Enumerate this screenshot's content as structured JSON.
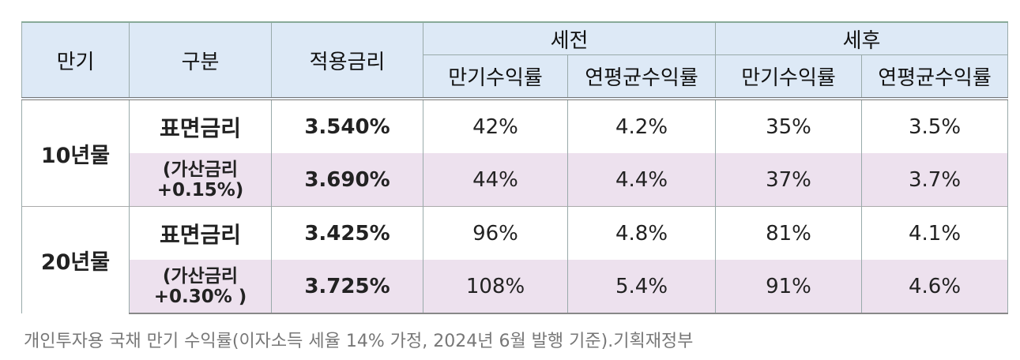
{
  "table": {
    "header": {
      "maturity": "만기",
      "type": "구분",
      "rate": "적용금리",
      "groups": [
        "세전",
        "세후"
      ],
      "subcolumns": [
        "만기수익률",
        "연평균수익률",
        "만기수익률",
        "연평균수익률"
      ]
    },
    "groups": [
      {
        "maturity": "10년물",
        "rows": [
          {
            "type": "표면금리",
            "rate": "3.540%",
            "cells": [
              "42%",
              "4.2%",
              "35%",
              "3.5%"
            ]
          },
          {
            "type": "(가산금리\n+0.15%)",
            "rate": "3.690%",
            "cells": [
              "44%",
              "4.4%",
              "37%",
              "3.7%"
            ]
          }
        ]
      },
      {
        "maturity": "20년물",
        "rows": [
          {
            "type": "표면금리",
            "rate": "3.425%",
            "cells": [
              "96%",
              "4.8%",
              "81%",
              "4.1%"
            ]
          },
          {
            "type": "(가산금리\n+0.30%  )",
            "rate": "3.725%",
            "cells": [
              "108%",
              "5.4%",
              "91%",
              "4.6%"
            ]
          }
        ]
      }
    ]
  },
  "caption": "개인투자용 국채 만기 수익률(이자소득 세율 14% 가정, 2024년 6월 발행 기준).기획재정부"
}
